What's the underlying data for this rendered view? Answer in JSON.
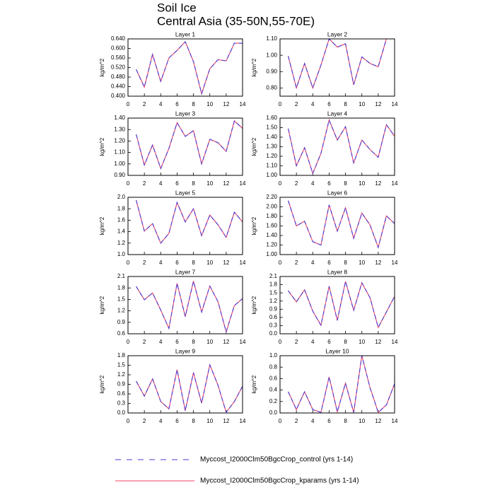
{
  "title": "Soil Ice",
  "subtitle": "Central Asia (35-50N,55-70E)",
  "chart_data": [
    {
      "type": "line",
      "title": "Layer 1",
      "y_label": "kg/m^2",
      "x": [
        1,
        2,
        3,
        4,
        5,
        6,
        7,
        8,
        9,
        10,
        11,
        12,
        13,
        14
      ],
      "xlim": [
        0,
        14
      ],
      "xticks": [
        0,
        2,
        4,
        6,
        8,
        10,
        12,
        14
      ],
      "ylim": [
        0.4,
        0.64
      ],
      "yticks": [
        {
          "value": 0.4,
          "label": "0.400"
        },
        {
          "value": 0.44,
          "label": "0.440"
        },
        {
          "value": 0.48,
          "label": "0.480"
        },
        {
          "value": 0.52,
          "label": "0.520"
        },
        {
          "value": 0.56,
          "label": "0.560"
        },
        {
          "value": 0.6,
          "label": "0.600"
        },
        {
          "value": 0.64,
          "label": "0.640"
        }
      ],
      "series": [
        {
          "name": "Myccost_I2000Clm50BgcCrop_control (yrs 1-14)",
          "color": "#4a3ad8",
          "dashed": true,
          "values": [
            0.512,
            0.438,
            0.575,
            0.462,
            0.56,
            0.592,
            0.628,
            0.545,
            0.41,
            0.515,
            0.553,
            0.548,
            0.622,
            0.622
          ]
        },
        {
          "name": "Myccost_I2000Clm50BgcCrop_kparams (yrs 1-14)",
          "color": "#f04060",
          "dashed": false,
          "values": [
            0.512,
            0.438,
            0.575,
            0.462,
            0.56,
            0.592,
            0.628,
            0.545,
            0.41,
            0.515,
            0.553,
            0.548,
            0.622,
            0.622
          ]
        }
      ]
    },
    {
      "type": "line",
      "title": "Layer 2",
      "y_label": "kg/m^2",
      "x": [
        1,
        2,
        3,
        4,
        5,
        6,
        7,
        8,
        9,
        10,
        11,
        12,
        13,
        14
      ],
      "xlim": [
        0,
        14
      ],
      "xticks": [
        0,
        2,
        4,
        6,
        8,
        10,
        12,
        14
      ],
      "ylim": [
        0.75,
        1.1
      ],
      "yticks": [
        {
          "value": 0.8,
          "label": "0.80"
        },
        {
          "value": 0.9,
          "label": "0.90"
        },
        {
          "value": 1.0,
          "label": "1.00"
        },
        {
          "value": 1.1,
          "label": "1.10"
        }
      ],
      "series": [
        {
          "name": "Myccost_I2000Clm50BgcCrop_control (yrs 1-14)",
          "color": "#4a3ad8",
          "dashed": true,
          "values": [
            0.995,
            0.8,
            0.95,
            0.8,
            0.94,
            1.1,
            1.05,
            1.07,
            0.82,
            0.99,
            0.95,
            0.93,
            1.1,
            1.1
          ]
        },
        {
          "name": "Myccost_I2000Clm50BgcCrop_kparams (yrs 1-14)",
          "color": "#f04060",
          "dashed": false,
          "values": [
            0.995,
            0.8,
            0.95,
            0.8,
            0.94,
            1.1,
            1.05,
            1.07,
            0.82,
            0.99,
            0.95,
            0.93,
            1.1,
            1.1
          ]
        }
      ]
    },
    {
      "type": "line",
      "title": "Layer 3",
      "y_label": "kg/m^2",
      "x": [
        1,
        2,
        3,
        4,
        5,
        6,
        7,
        8,
        9,
        10,
        11,
        12,
        13,
        14
      ],
      "xlim": [
        0,
        14
      ],
      "xticks": [
        0,
        2,
        4,
        6,
        8,
        10,
        12,
        14
      ],
      "ylim": [
        0.9,
        1.4
      ],
      "yticks": [
        {
          "value": 0.9,
          "label": "0.90"
        },
        {
          "value": 1.0,
          "label": "1.00"
        },
        {
          "value": 1.1,
          "label": "1.10"
        },
        {
          "value": 1.2,
          "label": "1.20"
        },
        {
          "value": 1.3,
          "label": "1.30"
        },
        {
          "value": 1.4,
          "label": "1.40"
        }
      ],
      "series": [
        {
          "name": "Myccost_I2000Clm50BgcCrop_control (yrs 1-14)",
          "color": "#4a3ad8",
          "dashed": true,
          "values": [
            1.258,
            0.99,
            1.165,
            0.96,
            1.135,
            1.36,
            1.24,
            1.29,
            1.0,
            1.215,
            1.185,
            1.11,
            1.375,
            1.31
          ]
        },
        {
          "name": "Myccost_I2000Clm50BgcCrop_kparams (yrs 1-14)",
          "color": "#f04060",
          "dashed": false,
          "values": [
            1.258,
            0.99,
            1.165,
            0.96,
            1.135,
            1.36,
            1.24,
            1.29,
            1.0,
            1.215,
            1.185,
            1.11,
            1.375,
            1.31
          ]
        }
      ]
    },
    {
      "type": "line",
      "title": "Layer 4",
      "y_label": "kg/m^2",
      "x": [
        1,
        2,
        3,
        4,
        5,
        6,
        7,
        8,
        9,
        10,
        11,
        12,
        13,
        14
      ],
      "xlim": [
        0,
        14
      ],
      "xticks": [
        0,
        2,
        4,
        6,
        8,
        10,
        12,
        14
      ],
      "ylim": [
        1.0,
        1.6
      ],
      "yticks": [
        {
          "value": 1.0,
          "label": "1.00"
        },
        {
          "value": 1.1,
          "label": "1.10"
        },
        {
          "value": 1.2,
          "label": "1.20"
        },
        {
          "value": 1.3,
          "label": "1.30"
        },
        {
          "value": 1.4,
          "label": "1.40"
        },
        {
          "value": 1.5,
          "label": "1.50"
        },
        {
          "value": 1.6,
          "label": "1.60"
        }
      ],
      "series": [
        {
          "name": "Myccost_I2000Clm50BgcCrop_control (yrs 1-14)",
          "color": "#4a3ad8",
          "dashed": true,
          "values": [
            1.49,
            1.1,
            1.29,
            1.02,
            1.23,
            1.58,
            1.37,
            1.51,
            1.13,
            1.37,
            1.27,
            1.19,
            1.53,
            1.41
          ]
        },
        {
          "name": "Myccost_I2000Clm50BgcCrop_kparams (yrs 1-14)",
          "color": "#f04060",
          "dashed": false,
          "values": [
            1.49,
            1.1,
            1.29,
            1.02,
            1.23,
            1.58,
            1.37,
            1.51,
            1.13,
            1.37,
            1.27,
            1.19,
            1.53,
            1.41
          ]
        }
      ]
    },
    {
      "type": "line",
      "title": "Layer 5",
      "y_label": "kg/m^2",
      "x": [
        1,
        2,
        3,
        4,
        5,
        6,
        7,
        8,
        9,
        10,
        11,
        12,
        13,
        14
      ],
      "xlim": [
        0,
        14
      ],
      "xticks": [
        0,
        2,
        4,
        6,
        8,
        10,
        12,
        14
      ],
      "ylim": [
        1.0,
        2.0
      ],
      "yticks": [
        {
          "value": 1.0,
          "label": "1.0"
        },
        1.2,
        1.4,
        1.6,
        1.8,
        {
          "value": 2.0,
          "label": "2.0"
        }
      ],
      "series": [
        {
          "name": "Myccost_I2000Clm50BgcCrop_control (yrs 1-14)",
          "color": "#4a3ad8",
          "dashed": true,
          "values": [
            1.95,
            1.41,
            1.54,
            1.2,
            1.37,
            1.91,
            1.57,
            1.8,
            1.33,
            1.69,
            1.52,
            1.3,
            1.74,
            1.57
          ]
        },
        {
          "name": "Myccost_I2000Clm50BgcCrop_kparams (yrs 1-14)",
          "color": "#f04060",
          "dashed": false,
          "values": [
            1.95,
            1.41,
            1.54,
            1.2,
            1.37,
            1.91,
            1.57,
            1.8,
            1.33,
            1.69,
            1.52,
            1.3,
            1.74,
            1.57
          ]
        }
      ]
    },
    {
      "type": "line",
      "title": "Layer 6",
      "y_label": "kg/m^2",
      "x": [
        1,
        2,
        3,
        4,
        5,
        6,
        7,
        8,
        9,
        10,
        11,
        12,
        13,
        14
      ],
      "xlim": [
        0,
        14
      ],
      "xticks": [
        0,
        2,
        4,
        6,
        8,
        10,
        12,
        14
      ],
      "ylim": [
        1.0,
        2.2
      ],
      "yticks": [
        {
          "value": 1.0,
          "label": "1.00"
        },
        {
          "value": 1.2,
          "label": "1.20"
        },
        {
          "value": 1.4,
          "label": "1.40"
        },
        {
          "value": 1.6,
          "label": "1.60"
        },
        {
          "value": 1.8,
          "label": "1.80"
        },
        {
          "value": 2.0,
          "label": "2.00"
        },
        {
          "value": 2.2,
          "label": "2.20"
        }
      ],
      "series": [
        {
          "name": "Myccost_I2000Clm50BgcCrop_control (yrs 1-14)",
          "color": "#4a3ad8",
          "dashed": true,
          "values": [
            2.13,
            1.6,
            1.7,
            1.27,
            1.2,
            2.04,
            1.49,
            1.98,
            1.34,
            1.87,
            1.62,
            1.15,
            1.81,
            1.65
          ]
        },
        {
          "name": "Myccost_I2000Clm50BgcCrop_kparams (yrs 1-14)",
          "color": "#f04060",
          "dashed": false,
          "values": [
            2.13,
            1.6,
            1.7,
            1.27,
            1.2,
            2.04,
            1.49,
            1.98,
            1.34,
            1.87,
            1.62,
            1.15,
            1.81,
            1.65
          ]
        }
      ]
    },
    {
      "type": "line",
      "title": "Layer 7",
      "y_label": "kg/m^2",
      "x": [
        1,
        2,
        3,
        4,
        5,
        6,
        7,
        8,
        9,
        10,
        11,
        12,
        13,
        14
      ],
      "xlim": [
        0,
        14
      ],
      "xticks": [
        0,
        2,
        4,
        6,
        8,
        10,
        12,
        14
      ],
      "ylim": [
        0.6,
        2.1
      ],
      "yticks": [
        0.6,
        0.9,
        1.2,
        1.5,
        1.8,
        2.1
      ],
      "series": [
        {
          "name": "Myccost_I2000Clm50BgcCrop_control (yrs 1-14)",
          "color": "#4a3ad8",
          "dashed": true,
          "values": [
            1.84,
            1.49,
            1.67,
            1.22,
            0.74,
            1.92,
            1.05,
            1.98,
            1.17,
            1.85,
            1.44,
            0.65,
            1.34,
            1.52
          ]
        },
        {
          "name": "Myccost_I2000Clm50BgcCrop_kparams (yrs 1-14)",
          "color": "#f04060",
          "dashed": false,
          "values": [
            1.84,
            1.49,
            1.67,
            1.22,
            0.74,
            1.92,
            1.05,
            1.98,
            1.17,
            1.85,
            1.44,
            0.65,
            1.34,
            1.52
          ]
        }
      ]
    },
    {
      "type": "line",
      "title": "Layer 8",
      "y_label": "kg/m^2",
      "x": [
        1,
        2,
        3,
        4,
        5,
        6,
        7,
        8,
        9,
        10,
        11,
        12,
        13,
        14
      ],
      "xlim": [
        0,
        14
      ],
      "xticks": [
        0,
        2,
        4,
        6,
        8,
        10,
        12,
        14
      ],
      "ylim": [
        0,
        2.1
      ],
      "yticks": [
        {
          "value": 0,
          "label": "0.0"
        },
        0.3,
        0.6,
        0.9,
        1.2,
        1.5,
        1.8,
        2.1
      ],
      "series": [
        {
          "name": "Myccost_I2000Clm50BgcCrop_control (yrs 1-14)",
          "color": "#4a3ad8",
          "dashed": true,
          "values": [
            1.58,
            1.17,
            1.61,
            0.83,
            0.31,
            1.74,
            0.49,
            1.92,
            0.86,
            1.87,
            1.32,
            0.23,
            0.8,
            1.37
          ]
        },
        {
          "name": "Myccost_I2000Clm50BgcCrop_kparams (yrs 1-14)",
          "color": "#f04060",
          "dashed": false,
          "values": [
            1.58,
            1.17,
            1.61,
            0.83,
            0.31,
            1.74,
            0.49,
            1.92,
            0.86,
            1.87,
            1.32,
            0.23,
            0.8,
            1.37
          ]
        }
      ]
    },
    {
      "type": "line",
      "title": "Layer 9",
      "y_label": "kg/m^2",
      "x": [
        1,
        2,
        3,
        4,
        5,
        6,
        7,
        8,
        9,
        10,
        11,
        12,
        13,
        14
      ],
      "xlim": [
        0,
        14
      ],
      "xticks": [
        0,
        2,
        4,
        6,
        8,
        10,
        12,
        14
      ],
      "ylim": [
        0,
        1.8
      ],
      "yticks": [
        {
          "value": 0,
          "label": "0.0"
        },
        0.3,
        0.6,
        0.9,
        1.2,
        1.5,
        1.8
      ],
      "series": [
        {
          "name": "Myccost_I2000Clm50BgcCrop_control (yrs 1-14)",
          "color": "#4a3ad8",
          "dashed": true,
          "values": [
            1.0,
            0.53,
            1.07,
            0.36,
            0.13,
            1.36,
            0.07,
            1.27,
            0.31,
            1.51,
            0.87,
            0.02,
            0.36,
            0.84
          ]
        },
        {
          "name": "Myccost_I2000Clm50BgcCrop_kparams (yrs 1-14)",
          "color": "#f04060",
          "dashed": false,
          "values": [
            1.0,
            0.53,
            1.07,
            0.36,
            0.13,
            1.36,
            0.07,
            1.27,
            0.31,
            1.51,
            0.87,
            0.02,
            0.36,
            0.84
          ]
        }
      ]
    },
    {
      "type": "line",
      "title": "Layer 10",
      "y_label": "kg/m^2",
      "x": [
        1,
        2,
        3,
        4,
        5,
        6,
        7,
        8,
        9,
        10,
        11,
        12,
        13,
        14
      ],
      "xlim": [
        0,
        14
      ],
      "xticks": [
        0,
        2,
        4,
        6,
        8,
        10,
        12,
        14
      ],
      "ylim": [
        0,
        1.0
      ],
      "yticks": [
        {
          "value": 0,
          "label": "0.0"
        },
        0.2,
        0.4,
        0.6,
        0.8,
        {
          "value": 1.0,
          "label": "1.0"
        }
      ],
      "series": [
        {
          "name": "Myccost_I2000Clm50BgcCrop_control (yrs 1-14)",
          "color": "#4a3ad8",
          "dashed": true,
          "values": [
            0.37,
            0.06,
            0.37,
            0.06,
            0.01,
            0.63,
            0.02,
            0.52,
            0.01,
            1.0,
            0.44,
            0.01,
            0.14,
            0.51
          ]
        },
        {
          "name": "Myccost_I2000Clm50BgcCrop_kparams (yrs 1-14)",
          "color": "#f04060",
          "dashed": false,
          "values": [
            0.37,
            0.06,
            0.37,
            0.06,
            0.01,
            0.63,
            0.02,
            0.52,
            0.01,
            1.0,
            0.44,
            0.01,
            0.14,
            0.51
          ]
        }
      ]
    }
  ]
}
